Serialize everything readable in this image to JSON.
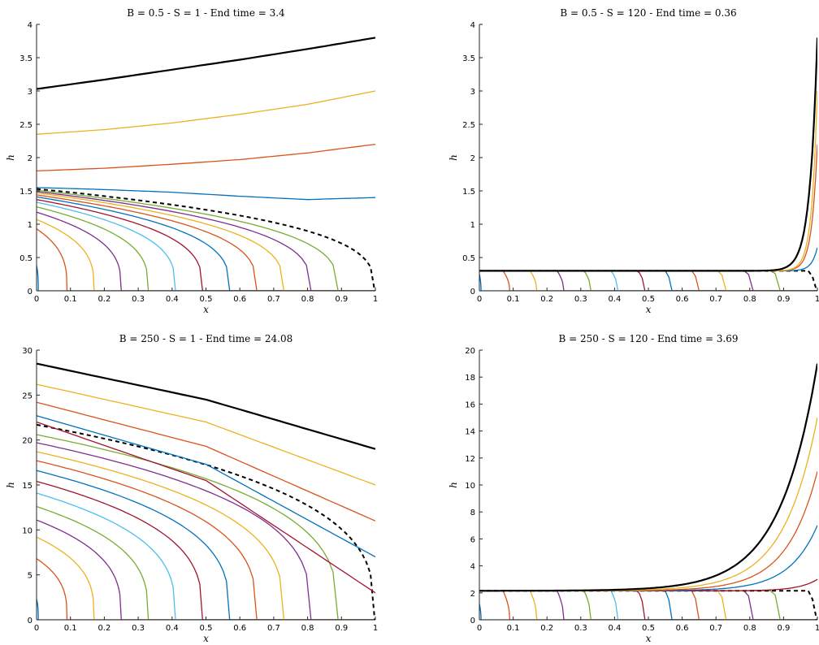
{
  "colors": {
    "palette": [
      "#0072BD",
      "#D95319",
      "#EDB120",
      "#7E2F8E",
      "#77AC30",
      "#4DBEEE",
      "#A2142F"
    ],
    "front": "#000000"
  },
  "chart_data": [
    {
      "type": "line",
      "title": "B = 0.5 - S = 1 - End time = 3.4",
      "xlabel": "x",
      "ylabel": "h",
      "xlim": [
        0,
        1
      ],
      "ylim": [
        0,
        4
      ],
      "xticks": [
        "0",
        "0.1",
        "0.2",
        "0.3",
        "0.4",
        "0.5",
        "0.6",
        "0.7",
        "0.8",
        "0.9",
        "1"
      ],
      "yticks": [
        "0",
        "0.5",
        "1",
        "1.5",
        "2",
        "2.5",
        "3",
        "3.5",
        "4"
      ],
      "grid": false,
      "front_positions": [
        0.005,
        0.09,
        0.17,
        0.25,
        0.33,
        0.41,
        0.49,
        0.57,
        0.65,
        0.73,
        0.81,
        0.89
      ],
      "front_heights": [
        0.38,
        0.93,
        1.07,
        1.18,
        1.26,
        1.33,
        1.37,
        1.41,
        1.44,
        1.47,
        1.49,
        1.51
      ],
      "dashed_left": 1.53,
      "dashed_right": 0.55,
      "full_series": [
        {
          "x": [
            0,
            0.2,
            0.4,
            0.6,
            0.8,
            1
          ],
          "y": [
            1.55,
            1.52,
            1.48,
            1.42,
            1.37,
            1.4
          ]
        },
        {
          "x": [
            0,
            0.2,
            0.4,
            0.6,
            0.8,
            1
          ],
          "y": [
            1.8,
            1.84,
            1.9,
            1.97,
            2.07,
            2.2
          ]
        },
        {
          "x": [
            0,
            0.2,
            0.4,
            0.6,
            0.8,
            1
          ],
          "y": [
            2.35,
            2.42,
            2.52,
            2.65,
            2.8,
            3.0
          ]
        },
        {
          "x": [
            0,
            0.2,
            0.4,
            0.6,
            0.8,
            1
          ],
          "y": [
            3.03,
            3.17,
            3.32,
            3.47,
            3.63,
            3.8
          ]
        }
      ]
    },
    {
      "type": "line",
      "title": "B = 0.5 - S = 120 - End time = 0.36",
      "xlabel": "x",
      "ylabel": "h",
      "xlim": [
        0,
        1
      ],
      "ylim": [
        0,
        4
      ],
      "xticks": [
        "0",
        "0.1",
        "0.2",
        "0.3",
        "0.4",
        "0.5",
        "0.6",
        "0.7",
        "0.8",
        "0.9",
        "1"
      ],
      "yticks": [
        "0",
        "0.5",
        "1",
        "1.5",
        "2",
        "2.5",
        "3",
        "3.5",
        "4"
      ],
      "grid": false,
      "plateau": 0.3,
      "front_positions": [
        0.005,
        0.09,
        0.17,
        0.25,
        0.33,
        0.41,
        0.49,
        0.57,
        0.65,
        0.73,
        0.81,
        0.89
      ],
      "front_heights": [
        0.3,
        0.3,
        0.3,
        0.3,
        0.3,
        0.3,
        0.3,
        0.3,
        0.3,
        0.3,
        0.3,
        0.3
      ],
      "dashed_left": 0.3,
      "dashed_right": 0.05,
      "steep_series": [
        {
          "end": 0.65,
          "k": 60
        },
        {
          "end": 2.2,
          "k": 60
        },
        {
          "end": 3.0,
          "k": 60
        },
        {
          "end": 3.8,
          "k": 45
        }
      ]
    },
    {
      "type": "line",
      "title": "B = 250 - S = 1 - End time = 24.08",
      "xlabel": "x",
      "ylabel": "h",
      "xlim": [
        0,
        1
      ],
      "ylim": [
        0,
        30
      ],
      "xticks": [
        "0",
        "0.1",
        "0.2",
        "0.3",
        "0.4",
        "0.5",
        "0.6",
        "0.7",
        "0.8",
        "0.9",
        "1"
      ],
      "yticks": [
        "0",
        "5",
        "10",
        "15",
        "20",
        "25",
        "30"
      ],
      "grid": false,
      "front_positions": [
        0.005,
        0.09,
        0.17,
        0.25,
        0.33,
        0.41,
        0.49,
        0.57,
        0.65,
        0.73,
        0.81,
        0.89
      ],
      "front_heights": [
        2.3,
        6.8,
        9.2,
        11.1,
        12.6,
        14.1,
        15.4,
        16.6,
        17.7,
        18.7,
        19.7,
        20.6
      ],
      "dashed_left": 21.7,
      "dashed_right": 1.0,
      "full_series": [
        {
          "x": [
            0,
            0.5,
            1
          ],
          "y": [
            22.0,
            15.5,
            3.0
          ]
        },
        {
          "x": [
            0,
            0.5,
            1
          ],
          "y": [
            22.7,
            17.3,
            7.0
          ]
        },
        {
          "x": [
            0,
            0.5,
            1
          ],
          "y": [
            24.2,
            19.3,
            11.0
          ]
        },
        {
          "x": [
            0,
            0.5,
            1
          ],
          "y": [
            26.2,
            22.0,
            15.0
          ]
        },
        {
          "x": [
            0,
            0.5,
            1
          ],
          "y": [
            28.5,
            24.5,
            19.0
          ]
        }
      ]
    },
    {
      "type": "line",
      "title": "B = 250 - S = 120 - End time = 3.69",
      "xlabel": "x",
      "ylabel": "h",
      "xlim": [
        0,
        1
      ],
      "ylim": [
        0,
        20
      ],
      "xticks": [
        "0",
        "0.1",
        "0.2",
        "0.3",
        "0.4",
        "0.5",
        "0.6",
        "0.7",
        "0.8",
        "0.9",
        "1"
      ],
      "yticks": [
        "0",
        "2",
        "4",
        "6",
        "8",
        "10",
        "12",
        "14",
        "16",
        "18",
        "20"
      ],
      "grid": false,
      "plateau": 2.15,
      "front_positions": [
        0.005,
        0.09,
        0.17,
        0.25,
        0.33,
        0.41,
        0.49,
        0.57,
        0.65,
        0.73,
        0.81,
        0.89
      ],
      "front_heights": [
        1.4,
        2.15,
        2.15,
        2.15,
        2.15,
        2.15,
        2.15,
        2.15,
        2.15,
        2.15,
        2.15,
        2.15
      ],
      "dashed_left": 2.15,
      "dashed_right": 0.3,
      "steep_series": [
        {
          "end": 3.0,
          "k": 18
        },
        {
          "end": 7.0,
          "k": 12
        },
        {
          "end": 11.0,
          "k": 11
        },
        {
          "end": 15.0,
          "k": 10
        },
        {
          "end": 19.0,
          "k": 9
        }
      ]
    }
  ]
}
